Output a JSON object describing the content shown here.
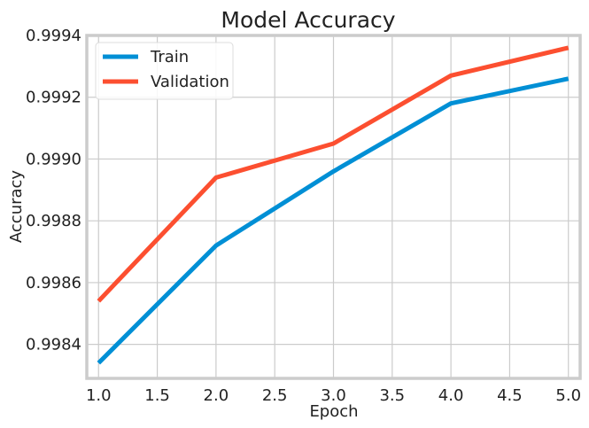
{
  "chart_data": {
    "type": "line",
    "title": "Model Accuracy",
    "xlabel": "Epoch",
    "ylabel": "Accuracy",
    "x": [
      1.0,
      2.0,
      3.0,
      4.0,
      5.0
    ],
    "xlim": [
      0.9,
      5.1
    ],
    "ylim": [
      0.99829,
      0.9994
    ],
    "x_ticks": [
      1.0,
      1.5,
      2.0,
      2.5,
      3.0,
      3.5,
      4.0,
      4.5,
      5.0
    ],
    "x_tick_labels": [
      "1.0",
      "1.5",
      "2.0",
      "2.5",
      "3.0",
      "3.5",
      "4.0",
      "4.5",
      "5.0"
    ],
    "y_ticks": [
      0.9984,
      0.9986,
      0.9988,
      0.999,
      0.9992,
      0.9994
    ],
    "y_tick_labels": [
      "0.9984",
      "0.9986",
      "0.9988",
      "0.9990",
      "0.9992",
      "0.9994"
    ],
    "grid": true,
    "legend_position": "top-left",
    "series": [
      {
        "name": "Train",
        "color": "#008fd5",
        "values": [
          0.99834,
          0.99872,
          0.99896,
          0.99918,
          0.99926
        ]
      },
      {
        "name": "Validation",
        "color": "#fc4f30",
        "values": [
          0.99854,
          0.99894,
          0.99905,
          0.99927,
          0.99936
        ]
      }
    ]
  }
}
